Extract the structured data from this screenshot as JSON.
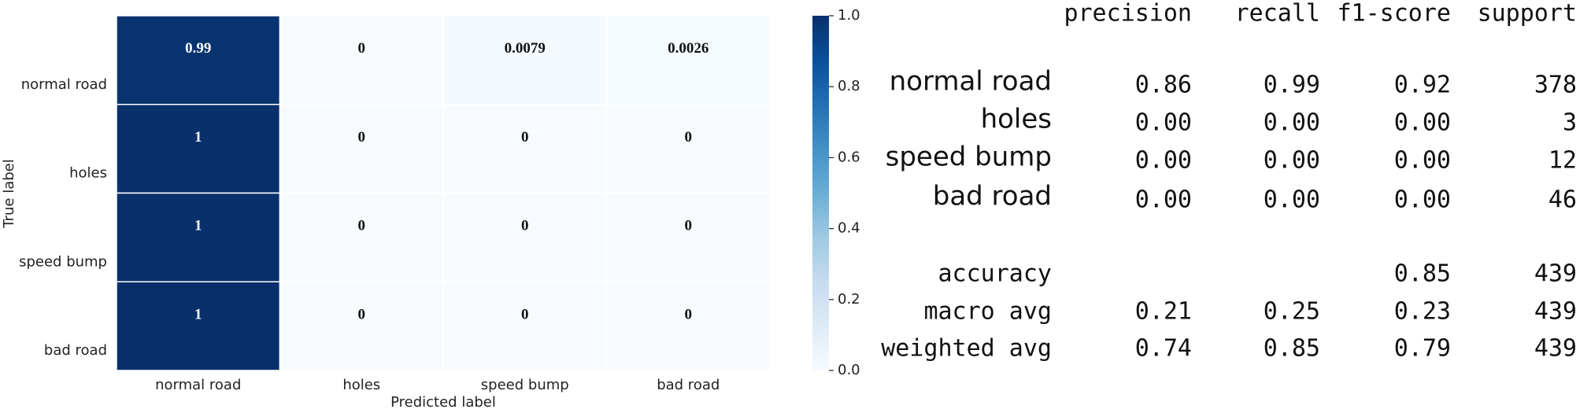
{
  "chart_data": {
    "type": "heatmap",
    "xlabel": "Predicted label",
    "ylabel": "True label",
    "x_categories": [
      "normal road",
      "holes",
      "speed bump",
      "bad road"
    ],
    "y_categories": [
      "normal road",
      "holes",
      "speed bump",
      "bad road"
    ],
    "values": [
      [
        0.99,
        0,
        0.0079,
        0.0026
      ],
      [
        1,
        0,
        0,
        0
      ],
      [
        1,
        0,
        0,
        0
      ],
      [
        1,
        0,
        0,
        0
      ]
    ],
    "cmap": "Blues",
    "clim": [
      0,
      1
    ],
    "cticks": [
      {
        "value": 0,
        "label": "0.0"
      },
      {
        "value": 0.2,
        "label": "0.2"
      },
      {
        "value": 0.4,
        "label": "0.4"
      },
      {
        "value": 0.6,
        "label": "0.6"
      },
      {
        "value": 0.8,
        "label": "0.8"
      },
      {
        "value": 1,
        "label": "1.0"
      }
    ]
  },
  "table": {
    "columns": [
      "precision",
      "recall",
      "f1-score",
      "support"
    ],
    "rows": [
      {
        "label": "normal road",
        "cells": [
          "0.86",
          "0.99",
          "0.92",
          "378"
        ]
      },
      {
        "label": "holes",
        "cells": [
          "0.00",
          "0.00",
          "0.00",
          "3"
        ]
      },
      {
        "label": "speed bump",
        "cells": [
          "0.00",
          "0.00",
          "0.00",
          "12"
        ]
      },
      {
        "label": "bad road",
        "cells": [
          "0.00",
          "0.00",
          "0.00",
          "46"
        ]
      },
      {
        "label": "accuracy",
        "cells": [
          null,
          null,
          "0.85",
          "439"
        ]
      },
      {
        "label": "macro avg",
        "cells": [
          "0.21",
          "0.25",
          "0.23",
          "439"
        ]
      },
      {
        "label": "weighted avg",
        "cells": [
          "0.74",
          "0.85",
          "0.79",
          "439"
        ]
      }
    ]
  }
}
